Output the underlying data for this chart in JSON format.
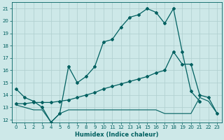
{
  "xlabel": "Humidex (Indice chaleur)",
  "ylabel": "",
  "xlim": [
    -0.5,
    23.5
  ],
  "ylim": [
    11.8,
    21.5
  ],
  "bg_color": "#cde8e8",
  "line_color": "#006060",
  "grid_color": "#aecece",
  "lines": [
    {
      "x": [
        0,
        1,
        2,
        3,
        4,
        5,
        6,
        7,
        8,
        9,
        10,
        11,
        12,
        13,
        14,
        15,
        16,
        17,
        18,
        19,
        20,
        21
      ],
      "y": [
        14.5,
        13.8,
        13.5,
        13.0,
        11.8,
        12.5,
        16.3,
        15.0,
        15.5,
        16.3,
        18.3,
        18.5,
        19.5,
        20.3,
        20.5,
        21.0,
        20.7,
        19.8,
        21.0,
        17.5,
        14.3,
        13.5
      ],
      "marker": "D",
      "markersize": 2.0,
      "linewidth": 0.9
    },
    {
      "x": [
        0,
        1,
        2,
        3,
        4,
        5,
        6,
        7,
        8,
        9,
        10,
        11,
        12,
        13,
        14,
        15,
        16,
        17,
        18,
        19,
        20,
        21,
        22,
        23
      ],
      "y": [
        13.3,
        13.3,
        13.4,
        13.4,
        13.4,
        13.5,
        13.6,
        13.8,
        14.0,
        14.2,
        14.5,
        14.7,
        14.9,
        15.1,
        15.3,
        15.5,
        15.8,
        16.0,
        17.5,
        16.5,
        16.5,
        14.0,
        13.8,
        12.5
      ],
      "marker": "D",
      "markersize": 2.0,
      "linewidth": 0.9
    },
    {
      "x": [
        0,
        1,
        2,
        3,
        4,
        5,
        6,
        7,
        8,
        9,
        10,
        11,
        12,
        13,
        14,
        15,
        16,
        17,
        18,
        19,
        20,
        21,
        22,
        23
      ],
      "y": [
        13.2,
        13.0,
        12.8,
        12.8,
        11.8,
        12.5,
        12.8,
        12.8,
        12.8,
        12.8,
        12.8,
        12.8,
        12.8,
        12.8,
        12.8,
        12.8,
        12.8,
        12.5,
        12.5,
        12.5,
        12.5,
        13.8,
        13.5,
        12.5
      ],
      "marker": "D",
      "markersize": 0,
      "linewidth": 0.8
    }
  ],
  "xticks": [
    0,
    1,
    2,
    3,
    4,
    5,
    6,
    7,
    8,
    9,
    10,
    11,
    12,
    13,
    14,
    15,
    16,
    17,
    18,
    19,
    20,
    21,
    22,
    23
  ],
  "yticks": [
    12,
    13,
    14,
    15,
    16,
    17,
    18,
    19,
    20,
    21
  ],
  "tick_fontsize": 5.0,
  "label_fontsize": 6.0
}
